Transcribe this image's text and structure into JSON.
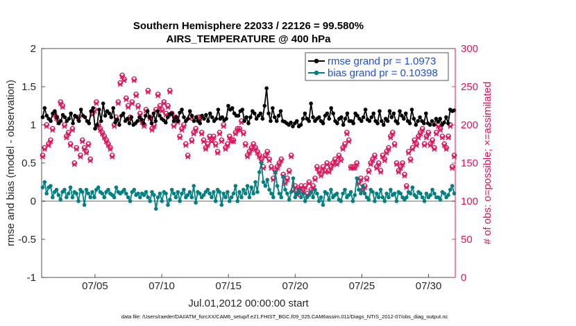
{
  "chart_data": {
    "type": "line",
    "title": [
      "Southern Hemisphere 22033 / 22126 = 99.580%",
      "AIRS_TEMPERATURE @ 400 hPa"
    ],
    "xlabel": "Jul.01,2012 00:00:00 start",
    "ylabel_left": "rmse and bias (model - observation)",
    "ylabel_right": "# of obs: o=possible; ×=assimilated",
    "footer": "data file: /Users/raeder/DAI/ATM_forcXX/CAM6_setup/f.e21.FHIST_BGC.f09_025.CAM6assim.011/Diags_NTrS_2012-07/obs_diag_output.nc",
    "xlim": [
      1,
      32
    ],
    "xticks": [
      5,
      10,
      15,
      20,
      25,
      30
    ],
    "xticklabels": [
      "07/05",
      "07/10",
      "07/15",
      "07/20",
      "07/25",
      "07/30"
    ],
    "ylim_left": [
      -1,
      2
    ],
    "yticks_left": [
      -1,
      -0.5,
      0,
      0.5,
      1,
      1.5,
      2
    ],
    "yticklabels_left": [
      "-1",
      "-0.5",
      "0",
      "0.5",
      "1",
      "1.5",
      "2"
    ],
    "ylim_right": [
      0,
      300
    ],
    "yticks_right": [
      0,
      50,
      100,
      150,
      200,
      250,
      300
    ],
    "yticklabels_right": [
      "0",
      "50",
      "100",
      "150",
      "200",
      "250",
      "300"
    ],
    "legend_position": "top-right",
    "grid": false,
    "zero_line": true,
    "series": [
      {
        "name": "rmse grand pr = 1.0973",
        "axis": "left",
        "color": "#000000",
        "values": [
          1.1,
          1.22,
          1.12,
          1.08,
          1.05,
          1.15,
          1.18,
          1.1,
          1.02,
          1.05,
          1.13,
          1.1,
          1.05,
          1.08,
          1.15,
          1.02,
          1.12,
          1.1,
          1.05,
          1.2,
          1.12,
          1.1,
          1.05,
          1.02,
          1.18,
          1.22,
          0.95,
          1.0,
          1.2,
          1.05,
          1.28,
          1.12,
          1.18,
          1.15,
          1.1,
          1.22,
          1.03,
          1.07,
          1.0,
          1.12,
          1.15,
          1.05,
          1.08,
          1.02,
          1.1,
          1.0,
          1.02,
          1.05,
          1.1,
          1.07,
          1.02,
          1.12,
          1.18,
          1.1,
          1.02,
          1.15,
          1.05,
          1.18,
          1.12,
          1.08,
          1.06,
          1.03,
          1.1,
          1.14,
          1.15,
          1.05,
          1.1,
          1.05,
          1.16,
          1.2,
          1.1,
          1.05,
          1.08,
          1.18,
          1.12,
          1.05,
          1.1,
          1.05,
          1.02,
          1.12,
          1.08,
          1.13,
          1.05,
          1.15,
          1.1,
          1.05,
          1.08,
          1.2,
          1.08,
          1.1,
          1.06,
          1.08,
          1.25,
          1.2,
          1.22,
          1.15,
          1.12,
          1.12,
          1.18,
          1.2,
          1.05,
          1.1,
          1.02,
          1.1,
          1.18,
          1.15,
          1.08,
          1.12,
          1.15,
          1.08,
          1.25,
          1.48,
          1.15,
          1.05,
          1.22,
          1.1,
          1.05,
          1.12,
          1.18,
          1.05,
          1.04,
          1.02,
          1.0,
          1.03,
          0.98,
          1.02,
          1.05,
          0.98,
          1.0,
          1.08,
          1.15,
          1.08,
          1.05,
          1.28,
          1.1,
          1.05,
          1.08,
          1.1,
          1.05,
          1.02,
          1.12,
          1.15,
          1.08,
          1.22,
          1.15,
          1.05,
          1.02,
          1.08,
          1.1,
          1.0,
          1.08,
          1.15,
          1.05,
          1.05,
          1.02,
          1.15,
          1.12,
          1.08,
          1.05,
          1.1,
          1.2,
          1.07,
          1.05,
          1.1,
          1.15,
          1.05,
          1.02,
          1.18,
          1.05,
          1.0,
          1.08,
          1.05,
          1.18,
          1.1,
          1.15,
          1.05,
          1.02,
          1.18,
          1.12,
          1.08,
          1.15,
          1.05,
          1.02,
          1.2,
          1.08,
          1.0,
          1.05,
          1.1,
          1.05,
          1.02,
          1.15,
          1.02,
          1.0,
          1.05,
          1.0,
          1.08,
          1.04,
          1.08,
          1.0,
          1.03,
          1.1,
          1.02,
          1.2,
          1.18,
          1.19
        ]
      },
      {
        "name": "bias grand pr = 0.10398",
        "axis": "left",
        "color": "#008080",
        "values": [
          0.18,
          0.25,
          0.1,
          0.18,
          0.2,
          0.05,
          0.12,
          0.15,
          0.08,
          0.02,
          0.12,
          0.15,
          0.05,
          0.1,
          0.18,
          0.05,
          0.12,
          0.1,
          0.0,
          0.15,
          0.12,
          -0.05,
          0.15,
          0.1,
          0.05,
          0.12,
          0.05,
          0.15,
          0.18,
          0.12,
          0.1,
          0.05,
          0.12,
          0.15,
          0.1,
          0.08,
          0.05,
          0.18,
          0.12,
          0.1,
          0.12,
          0.15,
          0.1,
          0.05,
          0.0,
          0.12,
          0.15,
          0.08,
          0.1,
          0.05,
          0.1,
          0.08,
          0.12,
          0.05,
          0.0,
          0.12,
          0.08,
          -0.1,
          0.05,
          0.1,
          0.0,
          0.12,
          0.1,
          -0.05,
          0.02,
          0.15,
          0.1,
          0.05,
          0.12,
          0.0,
          0.1,
          0.15,
          0.05,
          0.08,
          0.12,
          0.05,
          0.2,
          -0.02,
          0.12,
          0.1,
          0.05,
          0.08,
          0.12,
          0.15,
          0.1,
          0.05,
          0.12,
          0.0,
          0.15,
          0.12,
          -0.05,
          0.1,
          0.05,
          0.12,
          0.0,
          0.05,
          0.1,
          0.2,
          0.0,
          0.12,
          0.05,
          0.15,
          0.1,
          0.2,
          0.05,
          0.18,
          0.1,
          0.25,
          0.12,
          0.38,
          0.5,
          0.25,
          0.2,
          0.28,
          0.15,
          0.1,
          0.05,
          0.38,
          0.2,
          0.1,
          0.05,
          0.32,
          0.15,
          0.1,
          0.02,
          0.12,
          0.3,
          0.05,
          0.1,
          0.15,
          0.05,
          0.1,
          0.0,
          0.05,
          0.08,
          0.12,
          0.05,
          0.15,
          0.1,
          0.0,
          0.05,
          -0.05,
          0.12,
          0.1,
          0.02,
          0.15,
          0.05,
          0.08,
          0.1,
          0.02,
          0.0,
          0.1,
          0.15,
          0.05,
          0.08,
          0.12,
          0.0,
          0.08,
          0.3,
          0.15,
          0.1,
          0.2,
          0.1,
          0.05,
          0.02,
          0.15,
          0.12,
          0.0,
          0.1,
          0.05,
          0.15,
          0.05,
          0.0,
          0.1,
          0.05,
          0.15,
          0.08,
          0.1,
          0.0,
          0.12,
          0.1,
          0.05,
          0.02,
          0.05,
          0.12,
          0.1,
          0.18,
          0.08,
          0.05,
          0.12,
          0.1,
          0.05,
          0.0,
          0.1,
          0.05,
          0.08,
          0.15,
          0.1,
          0.05,
          0.05,
          0.02,
          0.12,
          0.1,
          0.05,
          0.08,
          0.15,
          0.2,
          0.1
        ]
      },
      {
        "name": "possible",
        "axis": "right",
        "color": "#e0125a",
        "marker": "circle",
        "values": [
          160,
          170,
          200,
          175,
          180,
          195,
          215,
          210,
          205,
          230,
          225,
          200,
          185,
          190,
          175,
          195,
          150,
          170,
          210,
          160,
          180,
          170,
          165,
          175,
          155,
          215,
          220,
          230,
          200,
          195,
          190,
          185,
          180,
          175,
          170,
          160,
          200,
          210,
          230,
          255,
          265,
          260,
          235,
          225,
          210,
          230,
          260,
          240,
          225,
          215,
          205,
          200,
          220,
          245,
          210,
          195,
          200,
          220,
          240,
          225,
          220,
          230,
          215,
          225,
          245,
          215,
          200,
          210,
          205,
          185,
          195,
          200,
          175,
          160,
          210,
          180,
          190,
          195,
          210,
          210,
          190,
          180,
          170,
          175,
          185,
          180,
          185,
          175,
          165,
          190,
          180,
          200,
          170,
          175,
          185,
          180,
          180,
          190,
          195,
          195,
          205,
          190,
          175,
          160,
          165,
          170,
          175,
          170,
          165,
          160,
          155,
          145,
          160,
          165,
          155,
          145,
          130,
          140,
          145,
          150,
          155,
          135,
          125,
          130,
          140,
          160,
          115,
          120,
          110,
          115,
          120,
          115,
          120,
          110,
          125,
          115,
          120,
          130,
          145,
          140,
          135,
          145,
          140,
          150,
          140,
          145,
          150,
          155,
          150,
          160,
          155,
          170,
          175,
          190,
          180,
          145,
          145,
          145,
          150,
          125,
          130,
          115,
          120,
          130,
          140,
          150,
          155,
          160,
          145,
          150,
          140,
          160,
          155,
          165,
          170,
          185,
          190,
          175,
          150,
          140,
          145,
          150,
          135,
          120,
          165,
          155,
          170,
          180,
          175,
          185,
          190,
          195,
          175,
          185,
          190,
          175,
          180,
          170,
          190,
          200,
          195,
          185,
          175,
          170,
          185,
          200,
          145,
          160
        ]
      },
      {
        "name": "assimilated",
        "axis": "right",
        "color": "#e0125a",
        "marker": "x",
        "values": [
          158,
          168,
          198,
          173,
          178,
          193,
          213,
          208,
          203,
          228,
          223,
          198,
          183,
          188,
          173,
          193,
          148,
          168,
          208,
          158,
          178,
          168,
          163,
          173,
          153,
          213,
          218,
          228,
          198,
          193,
          188,
          183,
          178,
          173,
          168,
          158,
          198,
          208,
          228,
          253,
          263,
          258,
          233,
          223,
          208,
          228,
          258,
          238,
          223,
          213,
          203,
          198,
          218,
          243,
          208,
          193,
          198,
          218,
          238,
          223,
          218,
          228,
          213,
          223,
          243,
          213,
          198,
          208,
          203,
          183,
          193,
          198,
          173,
          158,
          208,
          178,
          188,
          193,
          208,
          208,
          188,
          178,
          168,
          173,
          183,
          178,
          183,
          173,
          163,
          188,
          178,
          198,
          168,
          173,
          183,
          178,
          178,
          188,
          193,
          193,
          203,
          188,
          173,
          158,
          163,
          168,
          173,
          168,
          163,
          158,
          153,
          143,
          158,
          163,
          153,
          143,
          128,
          138,
          143,
          148,
          153,
          133,
          123,
          128,
          138,
          158,
          113,
          118,
          108,
          113,
          118,
          113,
          118,
          108,
          123,
          113,
          118,
          128,
          143,
          138,
          133,
          143,
          138,
          148,
          138,
          143,
          148,
          153,
          148,
          158,
          153,
          168,
          173,
          188,
          178,
          143,
          143,
          143,
          148,
          123,
          128,
          113,
          118,
          128,
          138,
          148,
          153,
          158,
          143,
          148,
          138,
          158,
          153,
          163,
          168,
          183,
          188,
          173,
          148,
          138,
          143,
          148,
          133,
          118,
          163,
          153,
          168,
          178,
          173,
          183,
          188,
          193,
          173,
          183,
          188,
          173,
          178,
          168,
          188,
          198,
          193,
          183,
          173,
          168,
          183,
          198,
          143,
          158
        ]
      }
    ]
  }
}
